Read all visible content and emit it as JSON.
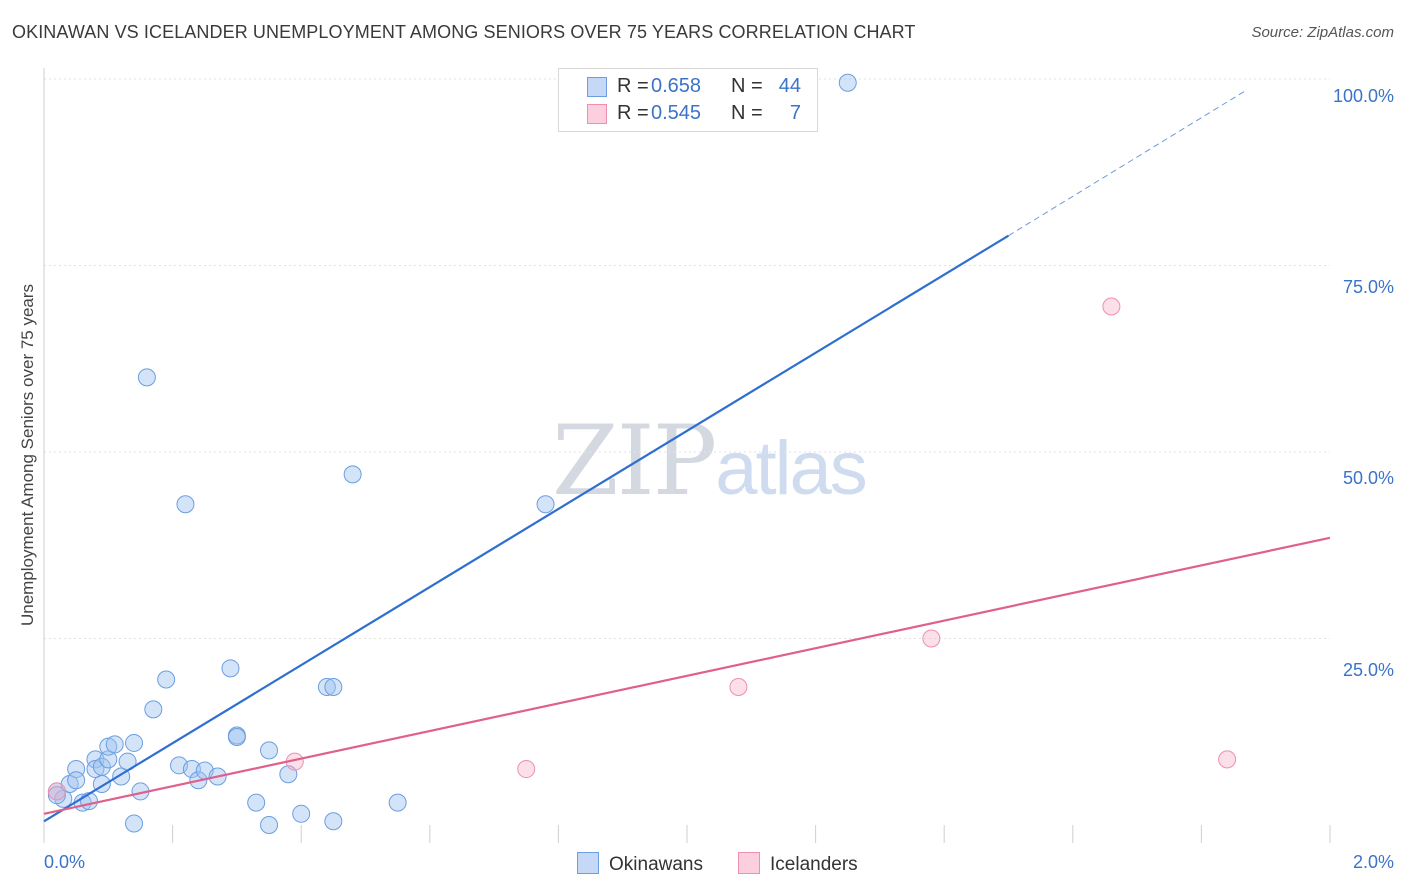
{
  "header": {
    "title": "OKINAWAN VS ICELANDER UNEMPLOYMENT AMONG SENIORS OVER 75 YEARS CORRELATION CHART",
    "source": "Source: ZipAtlas.com"
  },
  "watermark": {
    "zip": "ZIP",
    "atlas": "atlas"
  },
  "legend": {
    "rows": [
      {
        "r_label": "R =",
        "r_value": "0.658",
        "n_label": "N =",
        "n_value": "44",
        "color": "#6b9ee0"
      },
      {
        "r_label": "R =",
        "r_value": "0.545",
        "n_label": "N =",
        "n_value": "7",
        "color": "#f08fb0"
      }
    ]
  },
  "bottom_legend": {
    "items": [
      {
        "label": "Okinawans",
        "color": "#6b9ee0"
      },
      {
        "label": "Icelanders",
        "color": "#f08fb0"
      }
    ]
  },
  "chart_data": {
    "type": "scatter",
    "title": "OKINAWAN VS ICELANDER UNEMPLOYMENT AMONG SENIORS OVER 75 YEARS CORRELATION CHART",
    "xlabel": "",
    "ylabel": "Unemployment Among Seniors over 75 years",
    "xlim": [
      0,
      2
    ],
    "ylim": [
      0,
      100
    ],
    "x_tick_labels": [
      "0.0%",
      "2.0%"
    ],
    "y_ticks": [
      25,
      50,
      75,
      100
    ],
    "y_tick_labels": [
      "25.0%",
      "50.0%",
      "75.0%",
      "100.0%"
    ],
    "legend_position": "top-center",
    "series": [
      {
        "name": "Okinawans",
        "color": "#6b9ee0",
        "line_color": "#2f6fd0",
        "trend": {
          "x0": 0.0,
          "y0": 0.5,
          "x1": 1.5,
          "y1": 79,
          "dash_to_x": 1.87,
          "dash_to_y": 98.5
        },
        "points": [
          [
            0.02,
            4.5
          ],
          [
            0.03,
            3.5
          ],
          [
            0.04,
            5.5
          ],
          [
            0.05,
            7.5
          ],
          [
            0.05,
            6.0
          ],
          [
            0.06,
            3.0
          ],
          [
            0.07,
            3.2
          ],
          [
            0.08,
            8.8
          ],
          [
            0.08,
            7.5
          ],
          [
            0.09,
            7.8
          ],
          [
            0.09,
            5.5
          ],
          [
            0.1,
            8.8
          ],
          [
            0.1,
            10.5
          ],
          [
            0.11,
            10.8
          ],
          [
            0.12,
            6.5
          ],
          [
            0.13,
            8.5
          ],
          [
            0.14,
            11.0
          ],
          [
            0.15,
            4.5
          ],
          [
            0.16,
            60.0
          ],
          [
            0.17,
            15.5
          ],
          [
            0.19,
            19.5
          ],
          [
            0.21,
            8.0
          ],
          [
            0.22,
            43.0
          ],
          [
            0.23,
            7.5
          ],
          [
            0.24,
            6.0
          ],
          [
            0.25,
            7.3
          ],
          [
            0.27,
            6.5
          ],
          [
            0.29,
            21.0
          ],
          [
            0.3,
            12.0
          ],
          [
            0.3,
            11.8
          ],
          [
            0.35,
            10.0
          ],
          [
            0.35,
            0.0
          ],
          [
            0.38,
            6.8
          ],
          [
            0.4,
            1.5
          ],
          [
            0.44,
            18.5
          ],
          [
            0.45,
            18.5
          ],
          [
            0.45,
            0.5
          ],
          [
            0.48,
            47.0
          ],
          [
            0.55,
            3.0
          ],
          [
            0.78,
            43.0
          ],
          [
            1.25,
            99.5
          ],
          [
            0.14,
            0.2
          ],
          [
            0.33,
            3.0
          ],
          [
            0.02,
            4.0
          ]
        ]
      },
      {
        "name": "Icelanders",
        "color": "#f08fb0",
        "line_color": "#e0608c",
        "trend": {
          "x0": 0.0,
          "y0": 1.5,
          "x1": 2.0,
          "y1": 38.5
        },
        "points": [
          [
            0.02,
            4.5
          ],
          [
            0.39,
            8.5
          ],
          [
            0.75,
            7.5
          ],
          [
            1.08,
            18.5
          ],
          [
            1.38,
            25.0
          ],
          [
            1.66,
            69.5
          ],
          [
            1.84,
            8.8
          ]
        ]
      }
    ]
  }
}
